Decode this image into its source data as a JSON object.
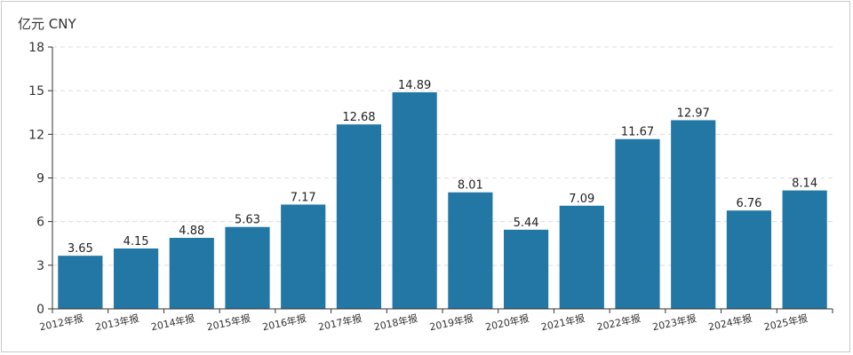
{
  "chart_data": {
    "type": "bar",
    "title": "",
    "ylabel": "亿元  CNY",
    "xlabel": "",
    "categories": [
      "2012年报",
      "2013年报",
      "2014年报",
      "2015年报",
      "2016年报",
      "2017年报",
      "2018年报",
      "2019年报",
      "2020年报",
      "2021年报",
      "2022年报",
      "2023年报",
      "2024年报",
      "2025年报"
    ],
    "values": [
      3.65,
      4.15,
      4.88,
      5.63,
      7.17,
      12.68,
      14.89,
      8.01,
      5.44,
      7.09,
      11.67,
      12.97,
      6.76,
      8.14
    ],
    "value_labels": [
      "3.65",
      "4.15",
      "4.88",
      "5.63",
      "7.17",
      "12.68",
      "14.89",
      "8.01",
      "5.44",
      "7.09",
      "11.67",
      "12.97",
      "6.76",
      "8.14"
    ],
    "ylim": [
      0,
      18
    ],
    "yticks": [
      0,
      3,
      6,
      9,
      12,
      15,
      18
    ],
    "ytick_labels": [
      "0",
      "3",
      "6",
      "9",
      "12",
      "15",
      "18"
    ],
    "grid": true,
    "legend": "none",
    "bar_color": "#2277a5"
  }
}
